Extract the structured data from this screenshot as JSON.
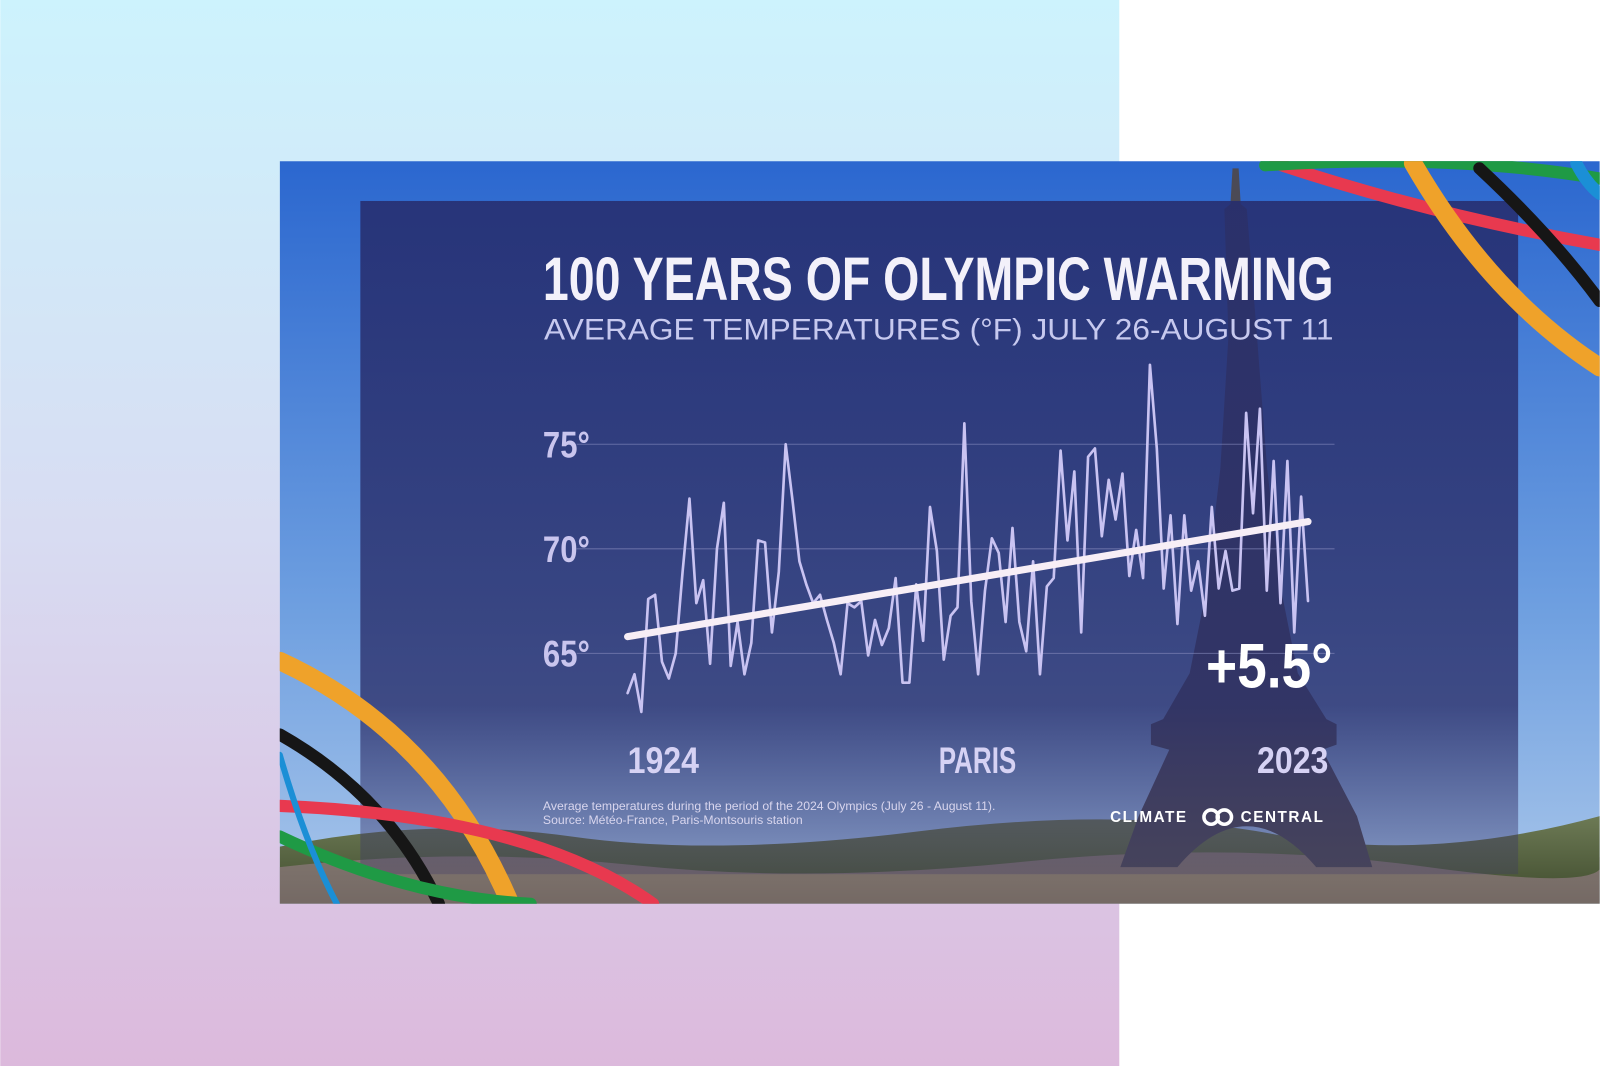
{
  "chart_data": {
    "type": "line",
    "title": "100 YEARS OF OLYMPIC WARMING",
    "subtitle": "AVERAGE TEMPERATURES (°F) JULY 26-AUGUST 11",
    "location_label": "PARIS",
    "annotation": "+5.5°",
    "footnotes": [
      "Average temperatures during the period of the 2024 Olympics (July 26 - August 11).",
      "Source: Météo-France, Paris-Montsouris station"
    ],
    "brand": [
      "CLIMATE",
      "CENTRAL"
    ],
    "x": [
      1924,
      1925,
      1926,
      1927,
      1928,
      1929,
      1930,
      1931,
      1932,
      1933,
      1934,
      1935,
      1936,
      1937,
      1938,
      1939,
      1940,
      1941,
      1942,
      1943,
      1944,
      1945,
      1946,
      1947,
      1948,
      1949,
      1950,
      1951,
      1952,
      1953,
      1954,
      1955,
      1956,
      1957,
      1958,
      1959,
      1960,
      1961,
      1962,
      1963,
      1964,
      1965,
      1966,
      1967,
      1968,
      1969,
      1970,
      1971,
      1972,
      1973,
      1974,
      1975,
      1976,
      1977,
      1978,
      1979,
      1980,
      1981,
      1982,
      1983,
      1984,
      1985,
      1986,
      1987,
      1988,
      1989,
      1990,
      1991,
      1992,
      1993,
      1994,
      1995,
      1996,
      1997,
      1998,
      1999,
      2000,
      2001,
      2002,
      2003,
      2004,
      2005,
      2006,
      2007,
      2008,
      2009,
      2010,
      2011,
      2012,
      2013,
      2014,
      2015,
      2016,
      2017,
      2018,
      2019,
      2020,
      2021,
      2022,
      2023
    ],
    "series": [
      {
        "color": "#c9c3f2",
        "values": [
          63.1,
          64.0,
          62.2,
          67.6,
          67.8,
          64.6,
          63.8,
          65.0,
          68.9,
          72.4,
          67.4,
          68.5,
          64.5,
          70.0,
          72.2,
          64.4,
          66.5,
          64.0,
          65.5,
          70.4,
          70.3,
          66.0,
          68.9,
          75.0,
          72.3,
          69.4,
          68.3,
          67.4,
          67.8,
          66.6,
          65.5,
          64.0,
          67.4,
          67.2,
          67.5,
          64.9,
          66.6,
          65.4,
          66.2,
          68.6,
          63.6,
          63.6,
          68.3,
          65.6,
          72.0,
          69.9,
          64.7,
          66.8,
          67.2,
          76.0,
          67.5,
          64.0,
          68.0,
          70.5,
          69.8,
          66.5,
          71.0,
          66.5,
          65.1,
          69.4,
          64.0,
          68.2,
          68.6,
          74.7,
          70.4,
          73.7,
          66.0,
          74.4,
          74.8,
          70.6,
          73.3,
          71.4,
          73.6,
          68.7,
          70.9,
          68.6,
          78.8,
          74.8,
          68.1,
          71.6,
          66.4,
          71.6,
          68.0,
          69.4,
          66.8,
          72.0,
          68.1,
          69.9,
          68.0,
          68.1,
          76.5,
          71.7,
          76.7,
          68.0,
          74.2,
          67.4,
          74.2,
          66.0,
          72.5,
          67.5
        ]
      },
      {
        "color": "#f7eef6",
        "x": [
          1924,
          2023
        ],
        "values": [
          65.8,
          71.3
        ]
      }
    ],
    "xlim": [
      1924,
      2023
    ],
    "xticks": [
      1924,
      2023
    ],
    "ylim": [
      62,
      79
    ],
    "yticks": [
      {
        "value": 65,
        "label": "65°"
      },
      {
        "value": 70,
        "label": "70°"
      },
      {
        "value": 75,
        "label": "75°"
      }
    ],
    "grid": true
  }
}
